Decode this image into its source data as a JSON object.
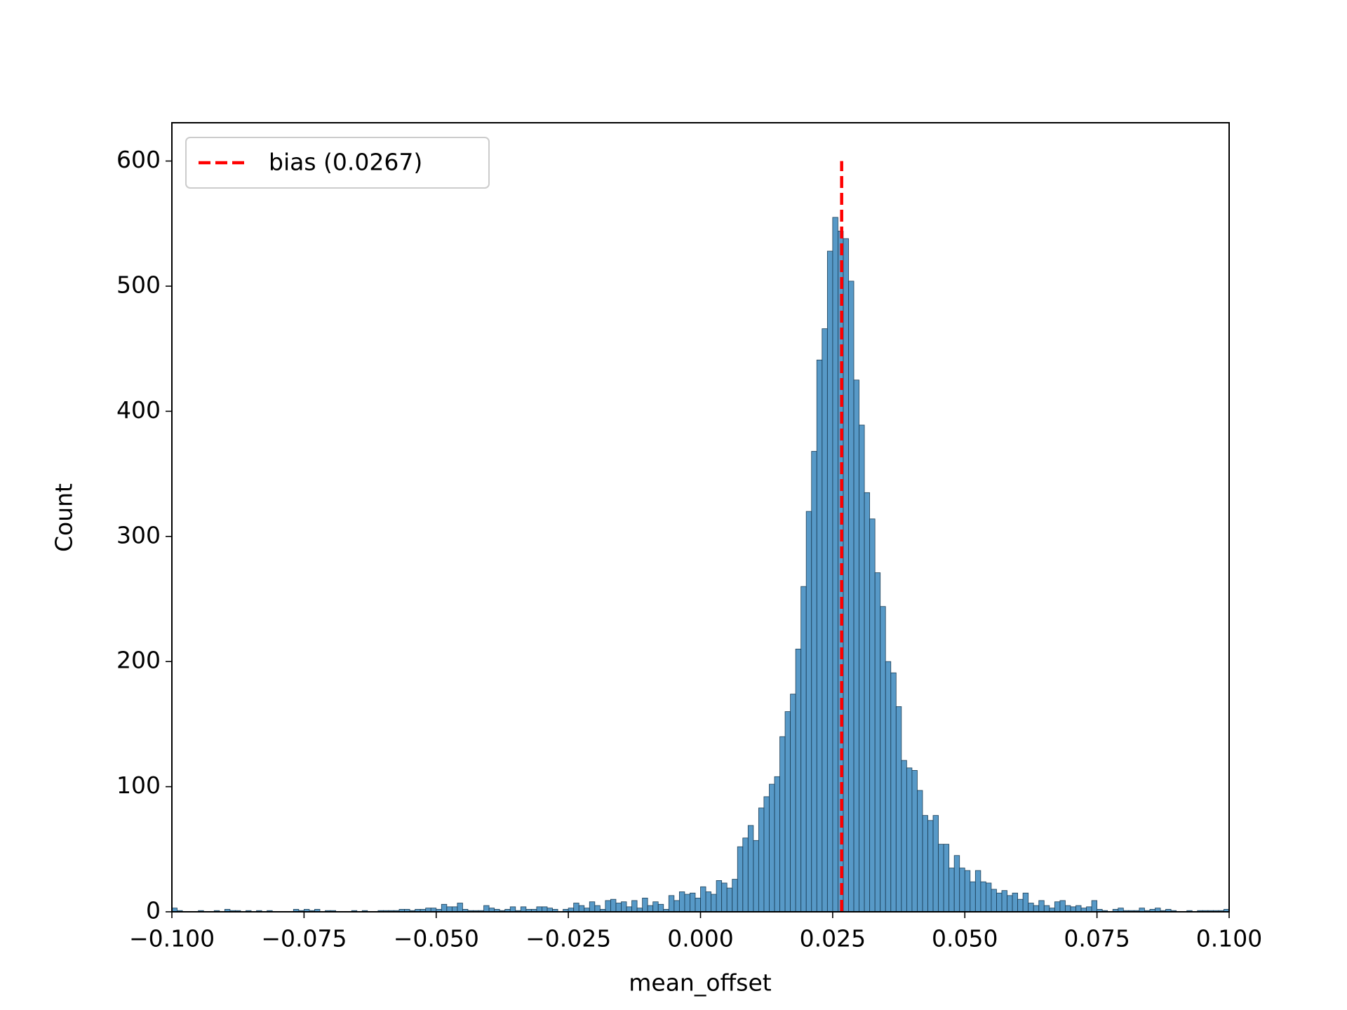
{
  "chart_data": {
    "type": "histogram",
    "xlabel": "mean_offset",
    "ylabel": "Count",
    "bins": [
      -0.1,
      -0.099,
      -0.098,
      -0.097,
      -0.096,
      -0.095,
      -0.094,
      -0.093,
      -0.092,
      -0.091,
      -0.09,
      -0.089,
      -0.088,
      -0.087,
      -0.086,
      -0.085,
      -0.084,
      -0.083,
      -0.082,
      -0.081,
      -0.08,
      -0.079,
      -0.078,
      -0.077,
      -0.076,
      -0.075,
      -0.074,
      -0.073,
      -0.072,
      -0.071,
      -0.07,
      -0.069,
      -0.068,
      -0.067,
      -0.066,
      -0.065,
      -0.064,
      -0.063,
      -0.062,
      -0.061,
      -0.06,
      -0.059,
      -0.058,
      -0.057,
      -0.056,
      -0.055,
      -0.054,
      -0.053,
      -0.052,
      -0.051,
      -0.05,
      -0.049,
      -0.048,
      -0.047,
      -0.046,
      -0.045,
      -0.044,
      -0.043,
      -0.042,
      -0.041,
      -0.04,
      -0.039,
      -0.038,
      -0.037,
      -0.036,
      -0.035,
      -0.034,
      -0.033,
      -0.032,
      -0.031,
      -0.03,
      -0.029,
      -0.028,
      -0.027,
      -0.026,
      -0.025,
      -0.024,
      -0.023,
      -0.022,
      -0.021,
      -0.02,
      -0.019,
      -0.018,
      -0.017,
      -0.016,
      -0.015,
      -0.014,
      -0.013,
      -0.012,
      -0.011,
      -0.01,
      -0.009,
      -0.008,
      -0.007,
      -0.006,
      -0.005,
      -0.004,
      -0.003,
      -0.002,
      -0.001,
      0,
      0.001,
      0.002,
      0.003,
      0.004,
      0.005,
      0.006,
      0.007,
      0.008,
      0.009,
      0.01,
      0.011,
      0.012,
      0.013,
      0.014,
      0.015,
      0.016,
      0.017,
      0.018,
      0.019,
      0.02,
      0.021,
      0.022,
      0.023,
      0.024,
      0.025,
      0.026,
      0.027,
      0.028,
      0.029,
      0.03,
      0.031,
      0.032,
      0.033,
      0.034,
      0.035,
      0.036,
      0.037,
      0.038,
      0.039,
      0.04,
      0.041,
      0.042,
      0.043,
      0.044,
      0.045,
      0.046,
      0.047,
      0.048,
      0.049,
      0.05,
      0.051,
      0.052,
      0.053,
      0.054,
      0.055,
      0.056,
      0.057,
      0.058,
      0.059,
      0.06,
      0.061,
      0.062,
      0.063,
      0.064,
      0.065,
      0.066,
      0.067,
      0.068,
      0.069,
      0.07,
      0.071,
      0.072,
      0.073,
      0.074,
      0.075,
      0.076,
      0.077,
      0.078,
      0.079,
      0.08,
      0.081,
      0.082,
      0.083,
      0.084,
      0.085,
      0.086,
      0.087,
      0.088,
      0.089,
      0.09,
      0.091,
      0.092,
      0.093,
      0.094,
      0.095,
      0.096,
      0.097,
      0.098,
      0.099,
      0.1
    ],
    "counts": [
      3,
      1,
      0,
      0,
      0,
      1,
      0,
      0,
      1,
      0,
      2,
      1,
      1,
      0,
      1,
      0,
      1,
      0,
      1,
      0,
      0,
      0,
      0,
      2,
      1,
      2,
      1,
      2,
      0,
      1,
      1,
      0,
      0,
      0,
      1,
      0,
      1,
      0,
      0,
      1,
      1,
      1,
      1,
      2,
      2,
      1,
      2,
      2,
      3,
      3,
      2,
      6,
      4,
      4,
      7,
      2,
      1,
      1,
      1,
      5,
      3,
      2,
      1,
      2,
      4,
      1,
      4,
      2,
      2,
      4,
      4,
      3,
      2,
      0,
      2,
      3,
      7,
      5,
      3,
      8,
      5,
      2,
      9,
      10,
      7,
      8,
      4,
      9,
      3,
      11,
      5,
      8,
      6,
      2,
      13,
      9,
      16,
      14,
      15,
      11,
      20,
      16,
      14,
      25,
      23,
      19,
      26,
      52,
      59,
      69,
      57,
      83,
      92,
      102,
      108,
      140,
      160,
      174,
      210,
      260,
      320,
      368,
      441,
      466,
      528,
      555,
      544,
      538,
      504,
      425,
      389,
      335,
      314,
      271,
      244,
      200,
      191,
      164,
      121,
      115,
      113,
      97,
      77,
      73,
      77,
      54,
      54,
      35,
      45,
      35,
      33,
      24,
      33,
      24,
      23,
      18,
      15,
      17,
      13,
      15,
      10,
      15,
      7,
      5,
      9,
      5,
      3,
      8,
      9,
      5,
      4,
      5,
      3,
      4,
      9,
      2,
      1,
      0,
      2,
      3,
      1,
      1,
      1,
      3,
      1,
      2,
      3,
      1,
      2,
      1,
      0,
      0,
      1,
      0,
      1,
      1,
      1,
      1,
      1,
      2
    ],
    "color": "#1f77b4",
    "xlim": [
      -0.1,
      0.1
    ],
    "xticks": [
      {
        "value": -0.1,
        "label": "−0.100"
      },
      {
        "value": -0.075,
        "label": "−0.075"
      },
      {
        "value": -0.05,
        "label": "−0.050"
      },
      {
        "value": -0.025,
        "label": "−0.025"
      },
      {
        "value": 0,
        "label": "0.000"
      },
      0.025,
      {
        "value": 0.05,
        "label": "0.050"
      },
      0.075,
      {
        "value": 0.1,
        "label": "0.100"
      }
    ],
    "ylim": [
      0,
      630.6
    ],
    "yticks": [
      0,
      100,
      200,
      300,
      400,
      500,
      600
    ],
    "vline": {
      "name": "bias (0.0267)",
      "x": 0.0267,
      "ymin": 0,
      "ymax": 600,
      "color": "#ff0000"
    },
    "legend": "upper left"
  }
}
